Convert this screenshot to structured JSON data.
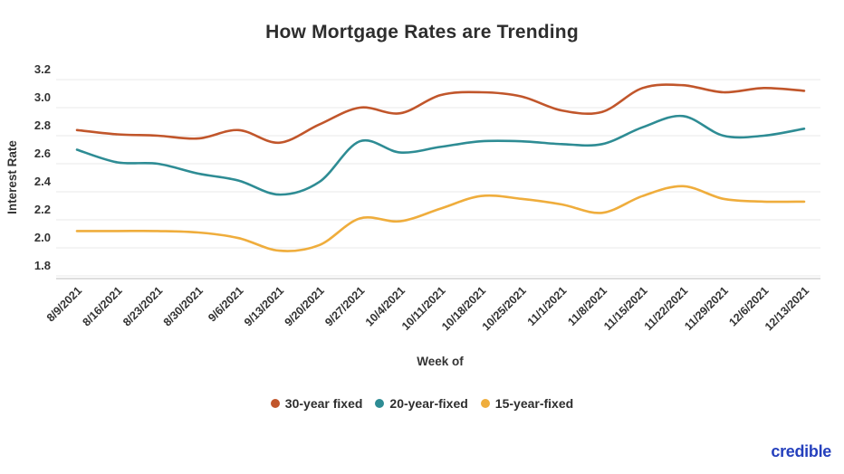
{
  "branding": {
    "logo_text": "credible",
    "logo_color": "#2540bd"
  },
  "chart_data": {
    "type": "line",
    "title": "How Mortgage Rates are Trending",
    "xlabel": "Week of",
    "ylabel": "Interest Rate",
    "ylim": [
      1.8,
      3.2
    ],
    "ytick_labels": [
      "3.2",
      "3.0",
      "2.8",
      "2.6",
      "2.4",
      "2.2",
      "2.0",
      "1.8"
    ],
    "grid": true,
    "legend_position": "bottom",
    "categories": [
      "8/9/2021",
      "8/16/2021",
      "8/23/2021",
      "8/30/2021",
      "9/6/2021",
      "9/13/2021",
      "9/20/2021",
      "9/27/2021",
      "10/4/2021",
      "10/11/2021",
      "10/18/2021",
      "10/25/2021",
      "11/1/2021",
      "11/8/2021",
      "11/15/2021",
      "11/22/2021",
      "11/29/2021",
      "12/6/2021",
      "12/13/2021"
    ],
    "series": [
      {
        "name": "30-year fixed",
        "color": "#c1562b",
        "values": [
          2.84,
          2.81,
          2.8,
          2.78,
          2.84,
          2.75,
          2.88,
          3.0,
          2.96,
          3.09,
          3.11,
          3.08,
          2.98,
          2.97,
          3.14,
          3.16,
          3.11,
          3.14,
          3.12
        ]
      },
      {
        "name": "20-year-fixed",
        "color": "#2e8c94",
        "values": [
          2.7,
          2.61,
          2.6,
          2.53,
          2.48,
          2.38,
          2.47,
          2.76,
          2.68,
          2.72,
          2.76,
          2.76,
          2.74,
          2.74,
          2.86,
          2.94,
          2.8,
          2.8,
          2.85
        ]
      },
      {
        "name": "15-year-fixed",
        "color": "#efad3c",
        "values": [
          2.12,
          2.12,
          2.12,
          2.11,
          2.07,
          1.98,
          2.02,
          2.21,
          2.19,
          2.28,
          2.37,
          2.35,
          2.31,
          2.25,
          2.37,
          2.44,
          2.35,
          2.33,
          2.33
        ]
      }
    ]
  }
}
